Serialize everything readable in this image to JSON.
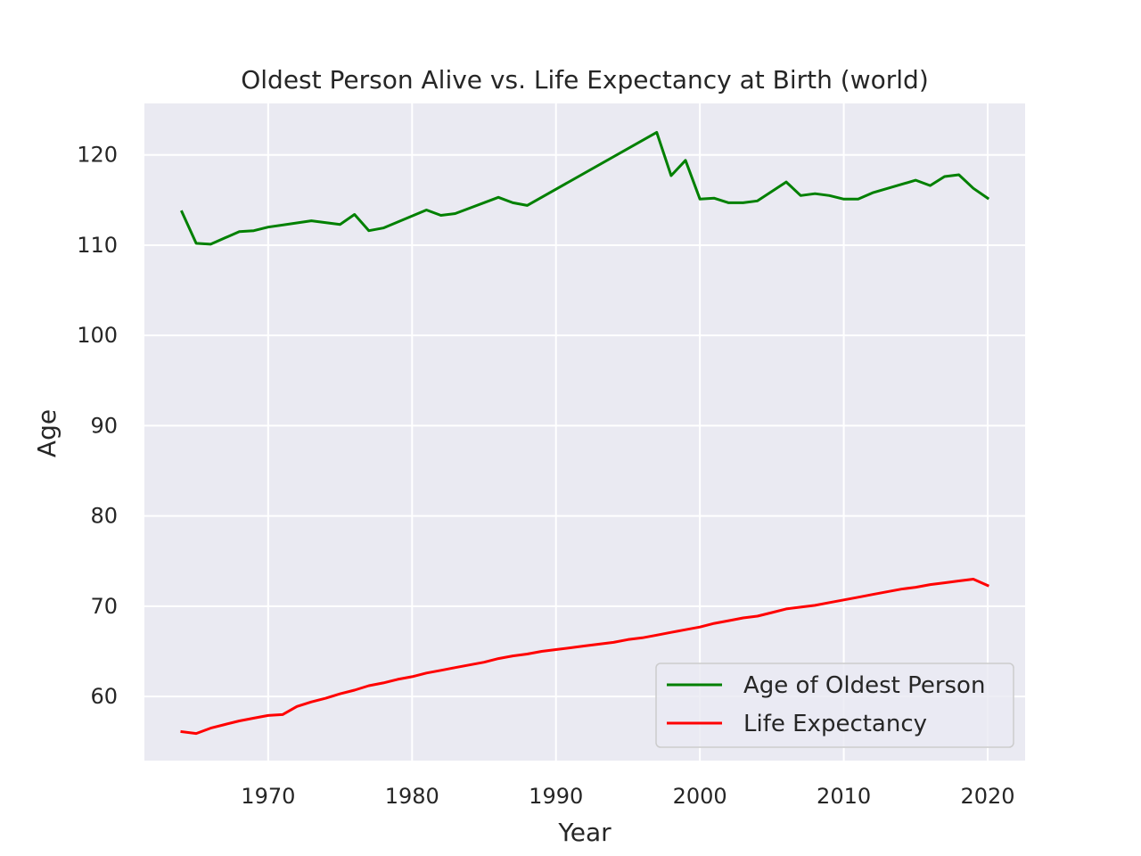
{
  "chart_data": {
    "type": "line",
    "title": "Oldest Person Alive vs. Life Expectancy at Birth (world)",
    "xlabel": "Year",
    "ylabel": "Age",
    "xlim": [
      1961.4,
      2022.6
    ],
    "ylim": [
      52.9,
      125.7
    ],
    "x_ticks": [
      1970,
      1980,
      1990,
      2000,
      2010,
      2020
    ],
    "y_ticks": [
      60,
      70,
      80,
      90,
      100,
      110,
      120
    ],
    "grid": true,
    "background": "#eaeaf2",
    "legend_position": "lower-right",
    "series": [
      {
        "name": "Age of Oldest Person",
        "color": "#008000",
        "x": [
          1964,
          1965,
          1966,
          1967,
          1968,
          1969,
          1970,
          1973,
          1975,
          1976,
          1977,
          1978,
          1981,
          1982,
          1983,
          1986,
          1987,
          1988,
          1997,
          1998,
          1999,
          2000,
          2001,
          2002,
          2003,
          2004,
          2006,
          2007,
          2008,
          2009,
          2010,
          2011,
          2012,
          2015,
          2016,
          2017,
          2018,
          2019,
          2020
        ],
        "values": [
          113.7,
          110.2,
          110.1,
          110.8,
          111.5,
          111.6,
          112.0,
          112.7,
          112.3,
          113.4,
          111.6,
          111.9,
          113.9,
          113.3,
          113.5,
          115.3,
          114.7,
          114.4,
          122.5,
          117.7,
          119.4,
          115.1,
          115.2,
          114.7,
          114.7,
          114.9,
          117.0,
          115.5,
          115.7,
          115.5,
          115.1,
          115.1,
          115.8,
          117.2,
          116.6,
          117.6,
          117.8,
          116.3,
          115.2
        ]
      },
      {
        "name": "Life Expectancy",
        "color": "#ff0000",
        "x": [
          1964,
          1965,
          1966,
          1967,
          1968,
          1969,
          1970,
          1971,
          1972,
          1973,
          1974,
          1975,
          1976,
          1977,
          1978,
          1979,
          1980,
          1981,
          1982,
          1983,
          1984,
          1985,
          1986,
          1987,
          1988,
          1989,
          1990,
          1991,
          1992,
          1993,
          1994,
          1995,
          1996,
          1997,
          1998,
          1999,
          2000,
          2001,
          2002,
          2003,
          2004,
          2005,
          2006,
          2007,
          2008,
          2009,
          2010,
          2011,
          2012,
          2013,
          2014,
          2015,
          2016,
          2017,
          2018,
          2019,
          2020
        ],
        "values": [
          56.1,
          55.9,
          56.5,
          56.9,
          57.3,
          57.6,
          57.9,
          58.0,
          58.9,
          59.4,
          59.8,
          60.3,
          60.7,
          61.2,
          61.5,
          61.9,
          62.2,
          62.6,
          62.9,
          63.2,
          63.5,
          63.8,
          64.2,
          64.5,
          64.7,
          65.0,
          65.2,
          65.4,
          65.6,
          65.8,
          66.0,
          66.3,
          66.5,
          66.8,
          67.1,
          67.4,
          67.7,
          68.1,
          68.4,
          68.7,
          68.9,
          69.3,
          69.7,
          69.9,
          70.1,
          70.4,
          70.7,
          71.0,
          71.3,
          71.6,
          71.9,
          72.1,
          72.4,
          72.6,
          72.8,
          73.0,
          72.3
        ]
      }
    ]
  }
}
